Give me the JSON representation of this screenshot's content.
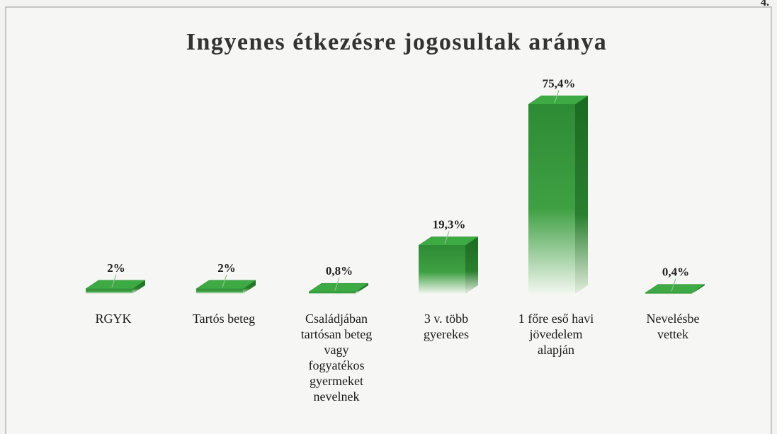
{
  "page_number": "4.",
  "chart_data": {
    "type": "bar3d",
    "title": "Ingyenes étkezésre jogosultak aránya",
    "categories": [
      "RGYK",
      "Tartós beteg",
      "Családjában\ntartósan beteg\nvagy\nfogyatékos\ngyermeket\nnevelnek",
      "3 v. több\ngyerekes",
      "1 főre eső havi\njövedelem\nalapján",
      "Nevelésbe\nvettek"
    ],
    "values": [
      2,
      2,
      0.8,
      19.3,
      75.4,
      0.4
    ],
    "value_labels": [
      "2%",
      "2%",
      "0,8%",
      "19,3%",
      "75,4%",
      "0,4%"
    ],
    "color": "#2e8b35"
  }
}
